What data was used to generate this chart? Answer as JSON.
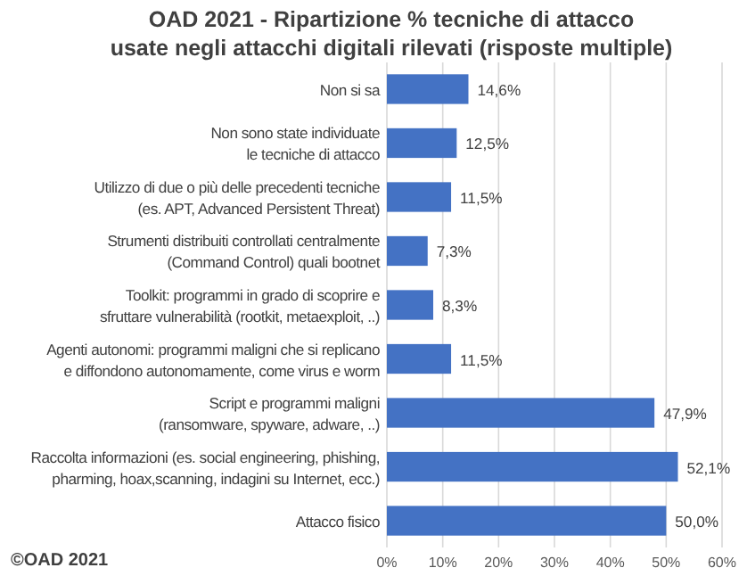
{
  "chart_data": {
    "type": "bar",
    "orientation": "horizontal",
    "title": "OAD 2021 - Ripartizione % tecniche di attacco\nusate negli attacchi digitali rilevati (risposte multiple)",
    "categories": [
      "Non si sa",
      "Non sono state individuate\nle tecniche di attacco",
      "Utilizzo di due o più delle precedenti tecniche\n(es. APT, Advanced Persistent Threat)",
      "Strumenti distribuiti controllati centralmente\n(Command Control) quali bootnet",
      "Toolkit: programmi in grado di scoprire e\nsfruttare vulnerabilità (rootkit, metaexploit, ..)",
      "Agenti autonomi: programmi maligni che si replicano\ne diffondono autonomamente, come virus e worm",
      "Script e programmi maligni\n(ransomware, spyware, adware, ..)",
      "Raccolta informazioni (es. social engineering, phishing,\npharming, hoax,scanning, indagini su Internet, ecc.)",
      "Attacco fisico"
    ],
    "values": [
      14.6,
      12.5,
      11.5,
      7.3,
      8.3,
      11.5,
      47.9,
      52.1,
      50.0
    ],
    "value_labels": [
      "14,6%",
      "12,5%",
      "11,5%",
      "7,3%",
      "8,3%",
      "11,5%",
      "47,9%",
      "52,1%",
      "50,0%"
    ],
    "color": "#4472c4",
    "xlim": [
      0,
      60
    ],
    "xticks": [
      {
        "value": 0,
        "label": "0%"
      },
      {
        "value": 10,
        "label": "10%"
      },
      {
        "value": 20,
        "label": "20%"
      },
      {
        "value": 30,
        "label": "30%"
      },
      {
        "value": 40,
        "label": "40%"
      },
      {
        "value": 50,
        "label": "50%"
      },
      {
        "value": 60,
        "label": "60%"
      }
    ],
    "grid": "x",
    "annotations": [
      "©OAD 2021"
    ]
  }
}
